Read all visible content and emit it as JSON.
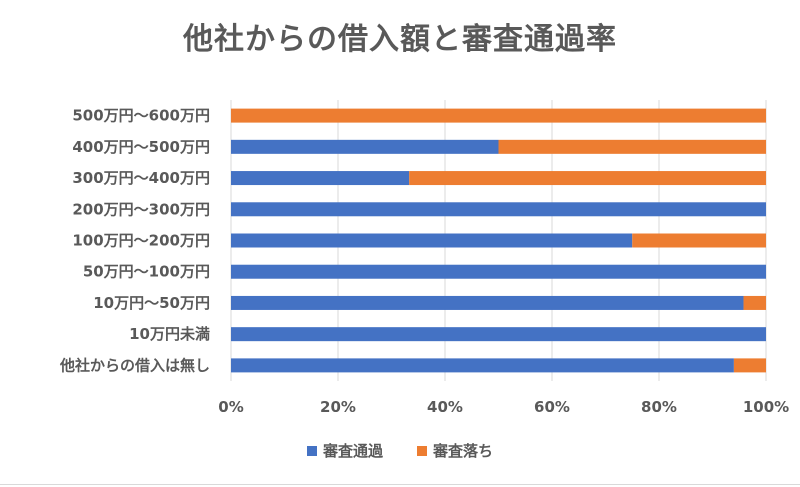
{
  "chart_data": {
    "type": "bar",
    "orientation": "horizontal",
    "stacked": "percent",
    "title": "他社からの借入額と審査通過率",
    "categories": [
      "500万円〜600万円",
      "400万円〜500万円",
      "300万円〜400万円",
      "200万円〜300万円",
      "100万円〜200万円",
      "50万円〜100万円",
      "10万円〜50万円",
      "10万円未満",
      "他社からの借入は無し"
    ],
    "series": [
      {
        "name": "審査通過",
        "color": "#4472C4",
        "values": [
          0,
          50,
          33.3,
          100,
          75,
          100,
          95.8,
          100,
          94
        ]
      },
      {
        "name": "審査落ち",
        "color": "#ED7D31",
        "values": [
          100,
          50,
          66.7,
          0,
          25,
          0,
          4.2,
          0,
          6
        ]
      }
    ],
    "xticks": [
      "0%",
      "20%",
      "40%",
      "60%",
      "80%",
      "100%"
    ],
    "xlim": [
      0,
      100
    ],
    "grid": true,
    "legend": "bottom"
  }
}
